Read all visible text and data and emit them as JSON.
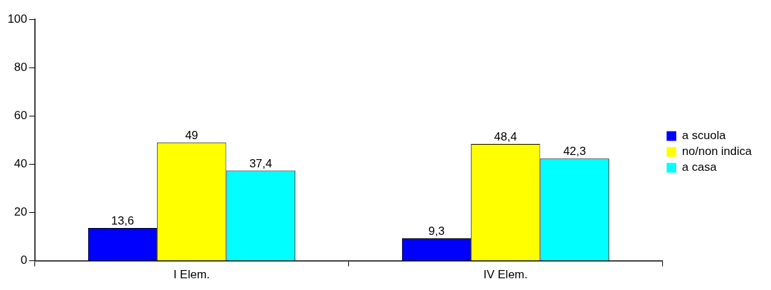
{
  "chart_data": {
    "type": "bar",
    "categories": [
      "I Elem.",
      "IV Elem."
    ],
    "series": [
      {
        "name": "a scuola",
        "color": "#0000ff",
        "values": [
          13.6,
          9.3
        ],
        "value_labels": [
          "13,6",
          "9,3"
        ]
      },
      {
        "name": "no/non indica",
        "color": "#ffff00",
        "values": [
          49,
          48.4
        ],
        "value_labels": [
          "49",
          "48,4"
        ]
      },
      {
        "name": "a casa",
        "color": "#00ffff",
        "values": [
          37.4,
          42.3
        ],
        "value_labels": [
          "37,4",
          "42,3"
        ]
      }
    ],
    "ylim": [
      0,
      100
    ],
    "yticks": [
      0,
      20,
      40,
      60,
      80,
      100
    ],
    "grid": false,
    "legend": "right"
  }
}
